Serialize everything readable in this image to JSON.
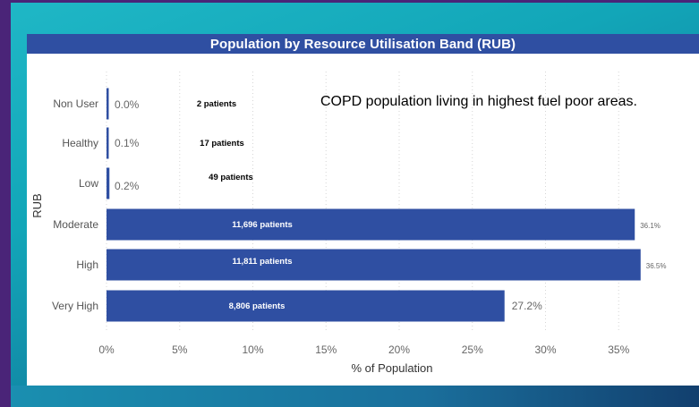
{
  "colors": {
    "bar": "#2f4fa2",
    "title_bg": "#2f4fa2",
    "title_text": "#ffffff",
    "frame_border": "#4a2478",
    "frame_accent": "#14a8bb"
  },
  "annotation": "COPD population living in highest fuel poor areas.",
  "chart_data": {
    "type": "bar",
    "orientation": "horizontal",
    "title": "Population by Resource Utilisation Band (RUB)",
    "xlabel": "% of Population",
    "ylabel": "RUB",
    "xlim": [
      0,
      36.5
    ],
    "grid": true,
    "xticks": [
      0,
      5,
      10,
      15,
      20,
      25,
      30,
      35
    ],
    "xtick_labels": [
      "0%",
      "5%",
      "10%",
      "15%",
      "20%",
      "25%",
      "30%",
      "35%"
    ],
    "categories": [
      "Non User",
      "Healthy",
      "Low",
      "Moderate",
      "High",
      "Very High"
    ],
    "values": [
      0.0,
      0.1,
      0.2,
      36.1,
      36.5,
      27.2
    ],
    "value_labels": [
      "0.0%",
      "0.1%",
      "0.2%",
      "36.1%",
      "36.5%",
      "27.2%"
    ],
    "patient_labels": [
      "2 patients",
      "17 patients",
      "49 patients",
      "11,696 patients",
      "11,811 patients",
      "8,806 patients"
    ]
  }
}
